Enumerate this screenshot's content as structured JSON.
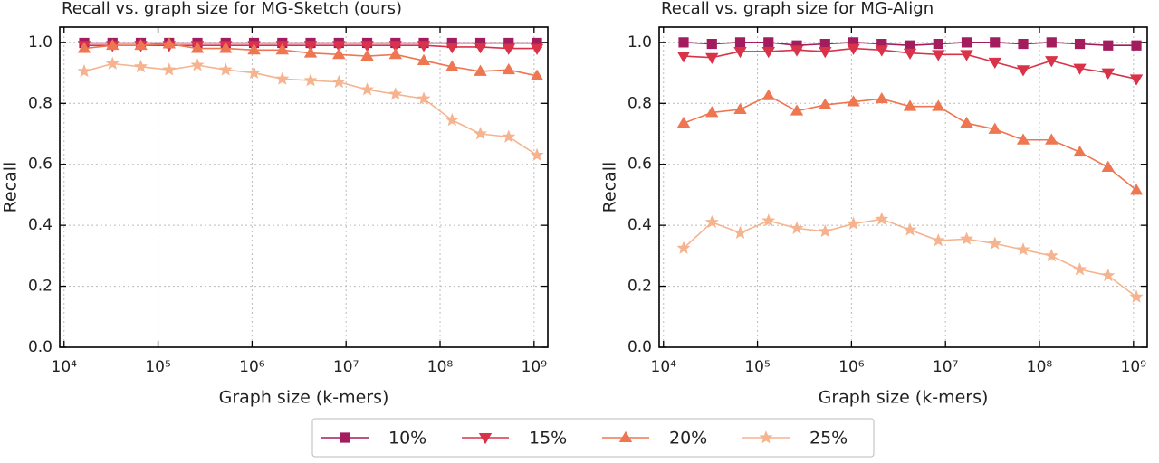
{
  "chart_data": [
    {
      "type": "line",
      "title": "Recall vs. graph size for MG-Sketch (ours)",
      "x_label": "Graph size (k-mers)",
      "y_label": "Recall",
      "x": [
        16384,
        32768,
        65536,
        131072,
        262144,
        524288,
        1048576,
        2097152,
        4194304,
        8388608,
        16777216,
        33554432,
        67108864,
        134217728,
        268435456,
        536870912,
        1073741824
      ],
      "x_scale": "log",
      "xlim": [
        9000,
        1400000000
      ],
      "xticks": [
        {
          "value": 10000,
          "label": "10⁴"
        },
        {
          "value": 100000,
          "label": "10⁵"
        },
        {
          "value": 1000000,
          "label": "10⁶"
        },
        {
          "value": 10000000,
          "label": "10⁷"
        },
        {
          "value": 100000000,
          "label": "10⁸"
        },
        {
          "value": 1000000000,
          "label": "10⁹"
        }
      ],
      "ylim": [
        0,
        1.05
      ],
      "yticks": [
        {
          "value": 0,
          "label": "0.0"
        },
        {
          "value": 0.2,
          "label": "0.2"
        },
        {
          "value": 0.4,
          "label": "0.4"
        },
        {
          "value": 0.6,
          "label": "0.6"
        },
        {
          "value": 0.8,
          "label": "0.8"
        },
        {
          "value": 1,
          "label": "1.0"
        }
      ],
      "grid": true,
      "series": [
        {
          "name": "10%",
          "color": "#a31d5e",
          "marker": "square",
          "values": [
            0.998,
            0.998,
            0.998,
            0.998,
            0.998,
            0.998,
            0.998,
            0.998,
            0.998,
            0.998,
            0.998,
            0.998,
            0.998,
            0.998,
            0.998,
            0.998,
            0.998
          ]
        },
        {
          "name": "15%",
          "color": "#d9334a",
          "marker": "triangle-down",
          "values": [
            0.99,
            0.99,
            0.99,
            0.99,
            0.99,
            0.99,
            0.99,
            0.99,
            0.99,
            0.99,
            0.99,
            0.99,
            0.99,
            0.985,
            0.985,
            0.98,
            0.98
          ]
        },
        {
          "name": "20%",
          "color": "#ee7651",
          "marker": "triangle-up",
          "values": [
            0.98,
            0.99,
            0.99,
            0.995,
            0.98,
            0.98,
            0.975,
            0.975,
            0.965,
            0.96,
            0.955,
            0.96,
            0.94,
            0.92,
            0.905,
            0.91,
            0.89
          ]
        },
        {
          "name": "25%",
          "color": "#f5b48f",
          "marker": "star",
          "values": [
            0.905,
            0.93,
            0.92,
            0.91,
            0.925,
            0.91,
            0.9,
            0.88,
            0.875,
            0.87,
            0.845,
            0.83,
            0.815,
            0.745,
            0.7,
            0.69,
            0.63
          ]
        }
      ]
    },
    {
      "type": "line",
      "title": "Recall vs. graph size for MG-Align",
      "x_label": "Graph size (k-mers)",
      "y_label": "Recall",
      "x": [
        16384,
        32768,
        65536,
        131072,
        262144,
        524288,
        1048576,
        2097152,
        4194304,
        8388608,
        16777216,
        33554432,
        67108864,
        134217728,
        268435456,
        536870912,
        1073741824
      ],
      "x_scale": "log",
      "xlim": [
        9000,
        1400000000
      ],
      "xticks": [
        {
          "value": 10000,
          "label": "10⁴"
        },
        {
          "value": 100000,
          "label": "10⁵"
        },
        {
          "value": 1000000,
          "label": "10⁶"
        },
        {
          "value": 10000000,
          "label": "10⁷"
        },
        {
          "value": 100000000,
          "label": "10⁸"
        },
        {
          "value": 1000000000,
          "label": "10⁹"
        }
      ],
      "ylim": [
        0,
        1.05
      ],
      "yticks": [
        {
          "value": 0,
          "label": "0.0"
        },
        {
          "value": 0.2,
          "label": "0.2"
        },
        {
          "value": 0.4,
          "label": "0.4"
        },
        {
          "value": 0.6,
          "label": "0.6"
        },
        {
          "value": 0.8,
          "label": "0.8"
        },
        {
          "value": 1,
          "label": "1.0"
        }
      ],
      "grid": true,
      "series": [
        {
          "name": "10%",
          "color": "#a31d5e",
          "marker": "square",
          "values": [
            1.0,
            0.995,
            1.0,
            1.0,
            0.99,
            0.995,
            1.0,
            0.995,
            0.99,
            0.995,
            1.0,
            1.0,
            0.995,
            1.0,
            0.995,
            0.99,
            0.99
          ]
        },
        {
          "name": "15%",
          "color": "#d9334a",
          "marker": "triangle-down",
          "values": [
            0.955,
            0.95,
            0.97,
            0.97,
            0.975,
            0.97,
            0.98,
            0.975,
            0.965,
            0.96,
            0.96,
            0.935,
            0.91,
            0.94,
            0.915,
            0.9,
            0.88
          ]
        },
        {
          "name": "20%",
          "color": "#ee7651",
          "marker": "triangle-up",
          "values": [
            0.735,
            0.77,
            0.78,
            0.825,
            0.775,
            0.795,
            0.805,
            0.815,
            0.79,
            0.79,
            0.735,
            0.715,
            0.68,
            0.68,
            0.64,
            0.59,
            0.515
          ]
        },
        {
          "name": "25%",
          "color": "#f5b48f",
          "marker": "star",
          "values": [
            0.325,
            0.41,
            0.375,
            0.415,
            0.39,
            0.38,
            0.405,
            0.42,
            0.385,
            0.35,
            0.355,
            0.34,
            0.32,
            0.3,
            0.255,
            0.235,
            0.165
          ]
        }
      ]
    }
  ]
}
